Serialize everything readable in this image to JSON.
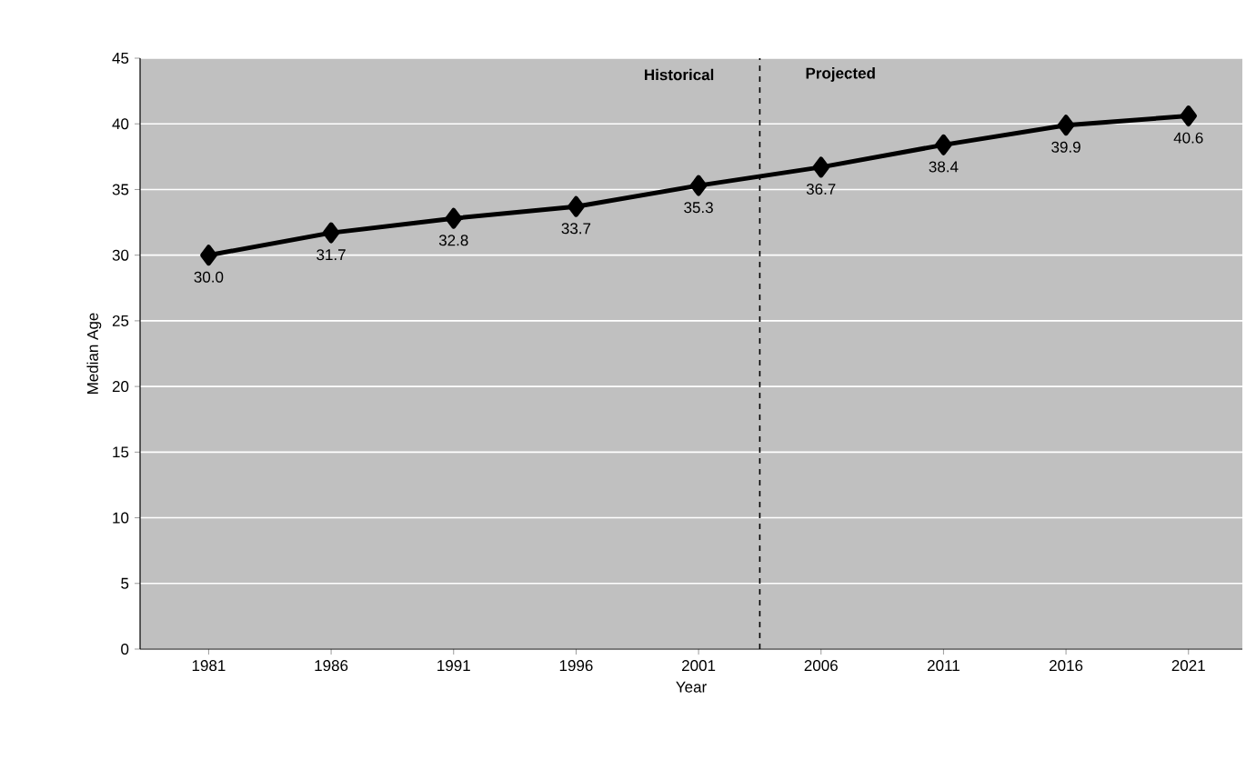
{
  "chart_data": {
    "type": "line",
    "xlabel": "Year",
    "ylabel": "Median Age",
    "x": [
      1981,
      1986,
      1991,
      1996,
      2001,
      2006,
      2011,
      2016,
      2021
    ],
    "values": [
      30.0,
      31.7,
      32.8,
      33.7,
      35.3,
      36.7,
      38.4,
      39.9,
      40.6
    ],
    "value_labels": [
      "30.0",
      "31.7",
      "32.8",
      "33.7",
      "35.3",
      "36.7",
      "38.4",
      "39.9",
      "40.6"
    ],
    "color": "#000000",
    "marker": "diamond",
    "line_style": "solid",
    "xlim": [
      1978.2,
      2023.2
    ],
    "xticks": [
      1981,
      1986,
      1991,
      1996,
      2001,
      2006,
      2011,
      2016,
      2021
    ],
    "ylim": [
      0,
      45
    ],
    "yticks": [
      0,
      5,
      10,
      15,
      20,
      25,
      30,
      35,
      40,
      45
    ],
    "grid": "y",
    "ref_lines": [
      {
        "axis": "x",
        "value": 2003.5,
        "color": "#000000",
        "line_style": "dashed"
      }
    ],
    "annotations": [
      "Historical",
      "Projected"
    ]
  }
}
